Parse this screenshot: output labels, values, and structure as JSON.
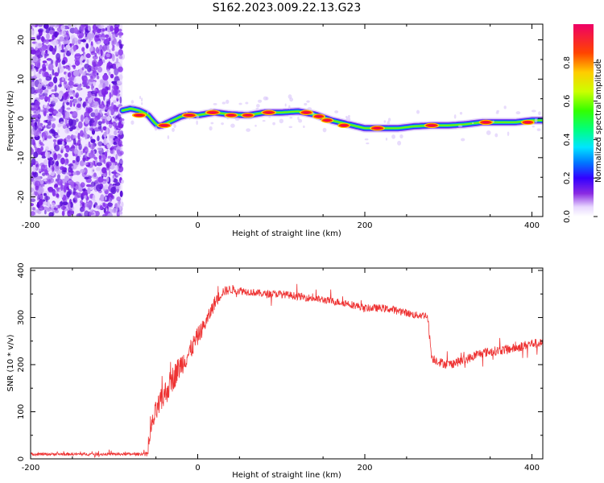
{
  "title": "S162.2023.009.22.13.G23",
  "chart_data": [
    {
      "type": "heatmap",
      "xlabel": "Height of straight line (km)",
      "ylabel": "Frequency (Hz)",
      "xlim": [
        -200,
        413
      ],
      "ylim": [
        -25,
        24
      ],
      "xticks": [
        -200,
        0,
        200,
        400
      ],
      "yticks": [
        -20,
        -10,
        0,
        10,
        20
      ],
      "colorbar": {
        "label": "Normalized spectral amplitude",
        "range": [
          0,
          1
        ],
        "ticks": [
          0.0,
          0.2,
          0.4,
          0.6,
          0.8
        ]
      },
      "noise_region_x": [
        -200,
        -90
      ],
      "ridge": {
        "x": [
          -90,
          -80,
          -70,
          -60,
          -50,
          -45,
          -40,
          -30,
          -20,
          -10,
          0,
          20,
          40,
          60,
          80,
          100,
          120,
          140,
          160,
          180,
          200,
          220,
          240,
          260,
          280,
          300,
          320,
          340,
          360,
          380,
          400,
          413
        ],
        "y": [
          2.0,
          2.5,
          2.0,
          1.0,
          -1.5,
          -2.0,
          -1.5,
          -0.5,
          0.5,
          1.0,
          0.8,
          1.5,
          1.0,
          0.8,
          1.5,
          1.5,
          1.8,
          1.0,
          -0.5,
          -1.5,
          -2.5,
          -2.5,
          -2.5,
          -2.0,
          -1.8,
          -1.8,
          -1.5,
          -1.0,
          -1.0,
          -1.0,
          -0.5,
          -0.5
        ]
      },
      "peaks": [
        {
          "x": -70,
          "y": 0.8,
          "value": 0.9
        },
        {
          "x": -40,
          "y": -1.8,
          "value": 0.9
        },
        {
          "x": -10,
          "y": 0.8,
          "value": 0.95
        },
        {
          "x": 18,
          "y": 1.5,
          "value": 0.95
        },
        {
          "x": 40,
          "y": 0.8,
          "value": 0.85
        },
        {
          "x": 60,
          "y": 0.8,
          "value": 0.85
        },
        {
          "x": 85,
          "y": 1.5,
          "value": 0.95
        },
        {
          "x": 130,
          "y": 1.5,
          "value": 0.85
        },
        {
          "x": 145,
          "y": 0.5,
          "value": 0.8
        },
        {
          "x": 155,
          "y": -0.5,
          "value": 0.8
        },
        {
          "x": 175,
          "y": -1.8,
          "value": 0.8
        },
        {
          "x": 215,
          "y": -2.5,
          "value": 0.95
        },
        {
          "x": 280,
          "y": -1.8,
          "value": 0.95
        },
        {
          "x": 345,
          "y": -1.0,
          "value": 0.9
        },
        {
          "x": 395,
          "y": -1.0,
          "value": 0.85
        }
      ]
    },
    {
      "type": "line",
      "xlabel": "Height of straight line (km)",
      "ylabel": "SNR (10 * v/v)",
      "xlim": [
        -200,
        413
      ],
      "ylim": [
        0,
        405
      ],
      "xticks": [
        -200,
        0,
        200,
        400
      ],
      "yticks": [
        0,
        100,
        200,
        300,
        400
      ],
      "series": [
        {
          "color": "#ee3333",
          "x": [
            -200,
            -150,
            -100,
            -70,
            -60,
            -55,
            -50,
            -40,
            -30,
            -20,
            -10,
            0,
            10,
            20,
            30,
            40,
            60,
            80,
            100,
            120,
            140,
            160,
            180,
            200,
            220,
            240,
            260,
            275,
            280,
            290,
            300,
            320,
            340,
            360,
            380,
            400,
            413
          ],
          "y": [
            10,
            10,
            10,
            10,
            12,
            70,
            100,
            135,
            170,
            200,
            225,
            260,
            290,
            330,
            355,
            360,
            355,
            350,
            350,
            345,
            340,
            335,
            330,
            320,
            320,
            315,
            305,
            305,
            215,
            205,
            200,
            210,
            225,
            230,
            235,
            245,
            245
          ],
          "noise": [
            3,
            3,
            3,
            3,
            3,
            20,
            25,
            28,
            28,
            25,
            22,
            20,
            15,
            15,
            10,
            10,
            8,
            8,
            8,
            8,
            8,
            8,
            8,
            8,
            8,
            8,
            8,
            8,
            10,
            10,
            10,
            10,
            10,
            10,
            10,
            10,
            10
          ]
        }
      ]
    }
  ]
}
